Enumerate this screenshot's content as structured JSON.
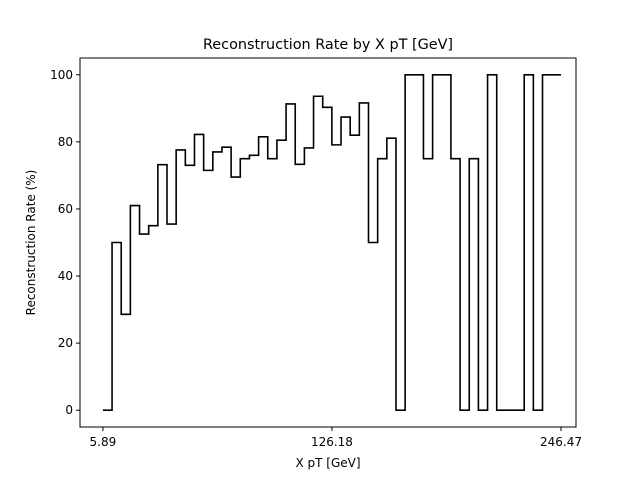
{
  "chart_data": {
    "type": "line",
    "style": "step",
    "title": "Reconstruction Rate by X pT [GeV]",
    "xlabel": "X pT [GeV]",
    "ylabel": "Reconstruction Rate (%)",
    "xticks": [
      5.89,
      126.18,
      246.47
    ],
    "xtick_labels": [
      "5.89",
      "126.18",
      "246.47"
    ],
    "yticks": [
      0,
      20,
      40,
      60,
      80,
      100
    ],
    "ytick_labels": [
      "0",
      "20",
      "40",
      "60",
      "80",
      "100"
    ],
    "xlim": [
      -6.14,
      254.36
    ],
    "ylim": [
      -5,
      105
    ],
    "grid": false,
    "series": [
      {
        "color": "#000000",
        "bin_edges": [
          5.89,
          10.7,
          15.51,
          20.32,
          25.13,
          29.94,
          34.75,
          39.56,
          44.37,
          49.18,
          53.99,
          58.8,
          63.61,
          68.42,
          73.23,
          78.04,
          82.85,
          87.66,
          92.47,
          97.28,
          102.09,
          106.9,
          111.71,
          116.52,
          121.33,
          126.14,
          130.95,
          135.76,
          140.57,
          145.38,
          150.19,
          155.0,
          159.81,
          164.62,
          169.43,
          174.24,
          179.05,
          183.86,
          188.67,
          193.48,
          198.29,
          203.1,
          207.91,
          212.72,
          217.53,
          222.34,
          227.15,
          231.96,
          236.77,
          241.58,
          246.47
        ],
        "values": [
          0,
          50,
          28.6,
          61,
          52.5,
          55,
          73.2,
          55.5,
          77.6,
          73,
          82.2,
          71.5,
          77,
          78.4,
          69.5,
          75,
          76,
          81.5,
          75,
          80.5,
          91.3,
          73.3,
          78.2,
          93.6,
          90.3,
          79.1,
          87.4,
          82,
          91.6,
          50,
          75,
          81.1,
          0,
          100,
          100,
          75,
          100,
          100,
          75,
          0,
          75,
          0,
          100,
          0,
          0,
          0,
          100,
          0,
          100,
          100
        ]
      }
    ]
  }
}
